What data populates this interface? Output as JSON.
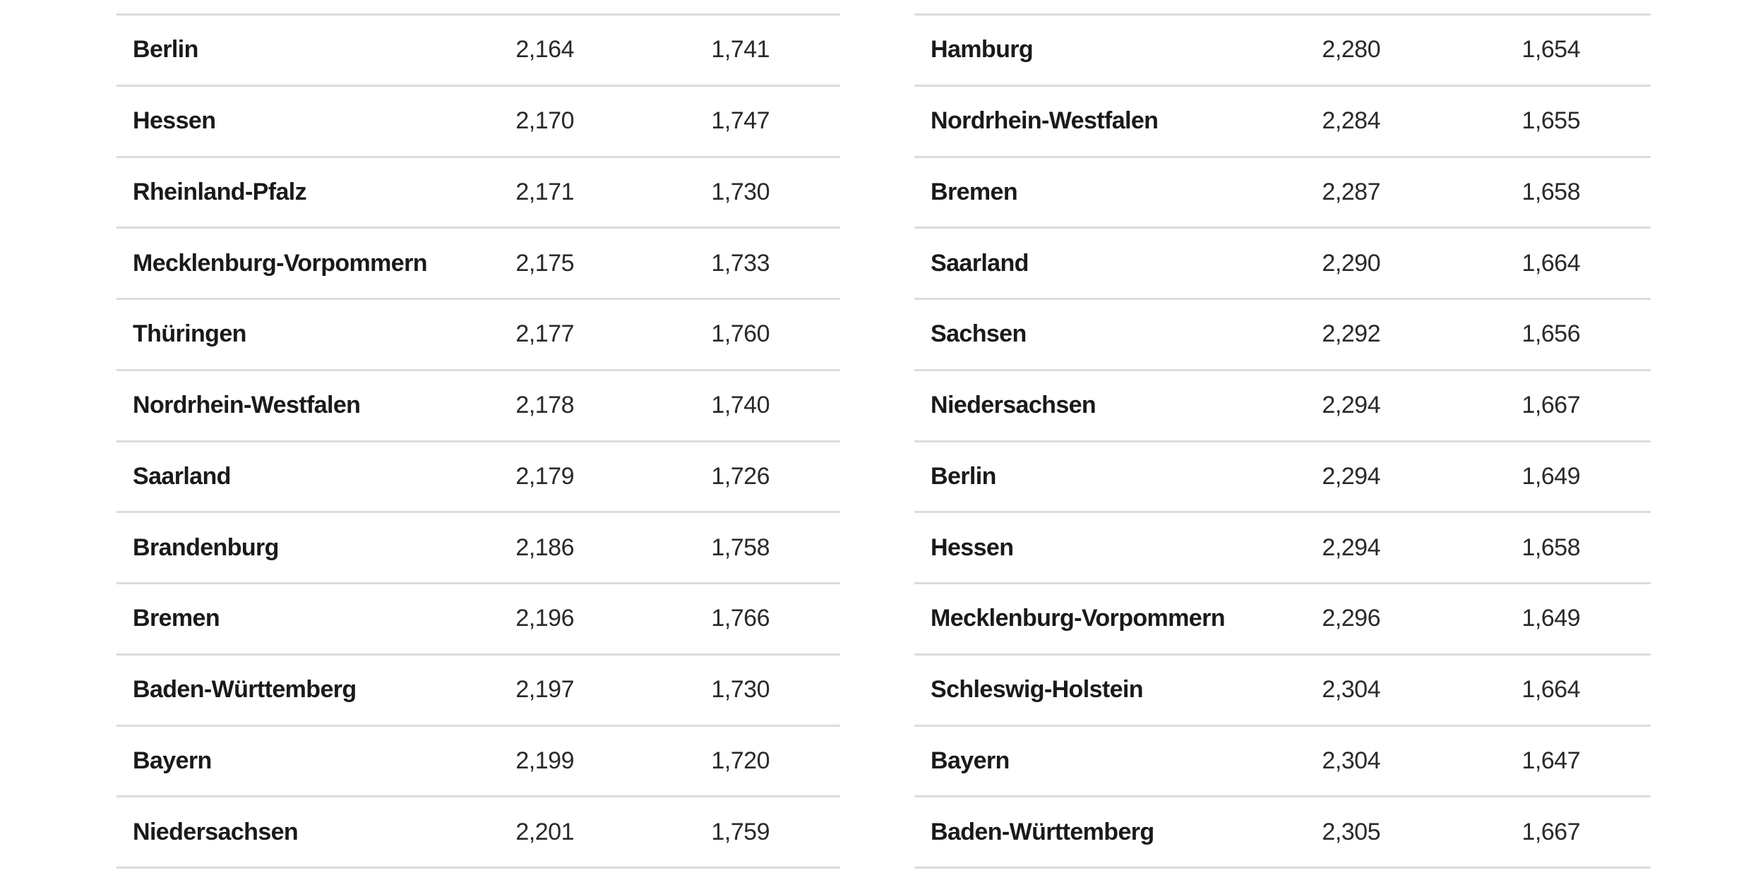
{
  "tables": [
    {
      "rows": [
        {
          "name": "Berlin",
          "v1": "2,164",
          "v2": "1,741"
        },
        {
          "name": "Hessen",
          "v1": "2,170",
          "v2": "1,747"
        },
        {
          "name": "Rheinland-Pfalz",
          "v1": "2,171",
          "v2": "1,730"
        },
        {
          "name": "Mecklenburg-Vorpommern",
          "v1": "2,175",
          "v2": "1,733"
        },
        {
          "name": "Thüringen",
          "v1": "2,177",
          "v2": "1,760"
        },
        {
          "name": "Nordrhein-Westfalen",
          "v1": "2,178",
          "v2": "1,740"
        },
        {
          "name": "Saarland",
          "v1": "2,179",
          "v2": "1,726"
        },
        {
          "name": "Brandenburg",
          "v1": "2,186",
          "v2": "1,758"
        },
        {
          "name": "Bremen",
          "v1": "2,196",
          "v2": "1,766"
        },
        {
          "name": "Baden-Württemberg",
          "v1": "2,197",
          "v2": "1,730"
        },
        {
          "name": "Bayern",
          "v1": "2,199",
          "v2": "1,720"
        },
        {
          "name": "Niedersachsen",
          "v1": "2,201",
          "v2": "1,759"
        }
      ]
    },
    {
      "rows": [
        {
          "name": "Hamburg",
          "v1": "2,280",
          "v2": "1,654"
        },
        {
          "name": "Nordrhein-Westfalen",
          "v1": "2,284",
          "v2": "1,655"
        },
        {
          "name": "Bremen",
          "v1": "2,287",
          "v2": "1,658"
        },
        {
          "name": "Saarland",
          "v1": "2,290",
          "v2": "1,664"
        },
        {
          "name": "Sachsen",
          "v1": "2,292",
          "v2": "1,656"
        },
        {
          "name": "Niedersachsen",
          "v1": "2,294",
          "v2": "1,667"
        },
        {
          "name": "Berlin",
          "v1": "2,294",
          "v2": "1,649"
        },
        {
          "name": "Hessen",
          "v1": "2,294",
          "v2": "1,658"
        },
        {
          "name": "Mecklenburg-Vorpommern",
          "v1": "2,296",
          "v2": "1,649"
        },
        {
          "name": "Schleswig-Holstein",
          "v1": "2,304",
          "v2": "1,664"
        },
        {
          "name": "Bayern",
          "v1": "2,304",
          "v2": "1,647"
        },
        {
          "name": "Baden-Württemberg",
          "v1": "2,305",
          "v2": "1,667"
        }
      ]
    }
  ],
  "colors": {
    "text": "#1e1e1e",
    "divider": "#dcdcdc",
    "background": "#ffffff"
  }
}
